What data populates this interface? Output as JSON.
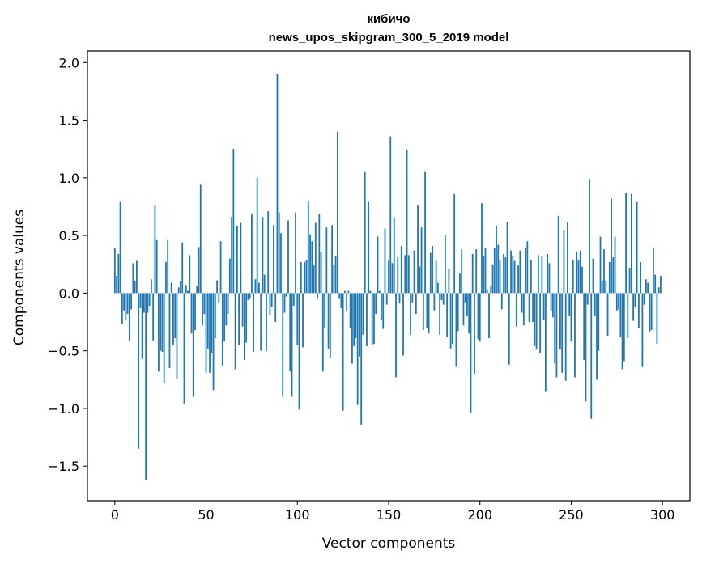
{
  "chart_data": {
    "type": "bar",
    "title": "кибичо",
    "subtitle": "news_upos_skipgram_300_5_2019 model",
    "xlabel": "Vector components",
    "ylabel": "Components values",
    "xlim": [
      -15,
      315
    ],
    "ylim": [
      -1.8,
      2.1
    ],
    "xticks": [
      0,
      50,
      100,
      150,
      200,
      250,
      300
    ],
    "yticks": [
      -1.5,
      -1.0,
      -0.5,
      0.0,
      0.5,
      1.0,
      1.5,
      2.0
    ],
    "ytick_labels": [
      "−1.5",
      "−1.0",
      "−0.5",
      "0.0",
      "0.5",
      "1.0",
      "1.5",
      "2.0"
    ],
    "bar_color": "#1f77b4",
    "grid": false,
    "values": [
      0.39,
      0.15,
      0.34,
      0.79,
      -0.27,
      -0.15,
      -0.23,
      -0.18,
      -0.41,
      -0.14,
      0.26,
      0.1,
      0.28,
      -1.35,
      -0.13,
      -0.57,
      -0.17,
      -1.62,
      -0.17,
      -0.11,
      0.12,
      -0.41,
      0.76,
      0.46,
      -0.68,
      -0.5,
      -0.51,
      -0.78,
      0.27,
      0.46,
      -0.65,
      0.09,
      -0.45,
      -0.39,
      -0.74,
      0.05,
      0.1,
      0.44,
      -0.96,
      0.07,
      0.02,
      0.33,
      -0.35,
      -0.9,
      -0.32,
      0.06,
      0.4,
      0.94,
      -0.28,
      -0.18,
      -0.69,
      -0.48,
      -0.69,
      -0.52,
      -0.84,
      -0.39,
      0.11,
      -0.09,
      0.45,
      -0.63,
      -0.42,
      -0.28,
      -0.18,
      0.3,
      0.66,
      1.25,
      -0.66,
      0.58,
      -0.45,
      0.61,
      -0.29,
      -0.58,
      -0.43,
      -0.06,
      -0.05,
      0.69,
      -0.51,
      0.12,
      1.0,
      0.09,
      -0.5,
      0.66,
      0.16,
      -0.5,
      0.71,
      -0.19,
      -0.12,
      0.59,
      -0.25,
      1.9,
      0.7,
      0.52,
      -0.9,
      -0.17,
      -0.03,
      0.63,
      -0.68,
      -0.9,
      -0.11,
      0.7,
      -0.45,
      -1.01,
      0.27,
      -0.47,
      0.27,
      0.29,
      0.8,
      0.51,
      0.45,
      0.24,
      0.61,
      -0.05,
      0.69,
      0.36,
      -0.68,
      -0.3,
      0.57,
      -0.48,
      -0.56,
      0.59,
      0.25,
      0.32,
      1.4,
      -0.05,
      -0.13,
      -1.02,
      0.02,
      -0.16,
      0.02,
      -0.3,
      -0.61,
      -0.46,
      -0.39,
      -0.97,
      -0.55,
      -1.14,
      -0.36,
      1.05,
      -0.46,
      0.79,
      0.02,
      -0.45,
      -0.44,
      -0.18,
      0.49,
      0.02,
      -0.23,
      -0.31,
      0.56,
      -0.1,
      0.28,
      1.36,
      0.26,
      0.65,
      -0.73,
      0.31,
      -0.09,
      0.41,
      -0.54,
      0.33,
      1.24,
      0.33,
      -0.36,
      -0.08,
      0.37,
      -0.18,
      0.76,
      0.23,
      0.57,
      -0.32,
      1.05,
      -0.3,
      -0.35,
      0.35,
      0.41,
      -0.15,
      0.28,
      0.09,
      -0.36,
      -0.06,
      -0.1,
      0.5,
      -0.38,
      0.21,
      -0.48,
      -0.44,
      0.86,
      -0.64,
      -0.33,
      0.17,
      0.38,
      -0.28,
      -0.08,
      -0.2,
      -0.35,
      -1.04,
      0.34,
      -0.7,
      0.38,
      -0.4,
      -0.42,
      0.78,
      0.32,
      0.39,
      0.03,
      -0.39,
      0.06,
      0.25,
      0.39,
      0.58,
      0.42,
      0.28,
      -0.14,
      0.34,
      0.31,
      0.62,
      -0.62,
      0.37,
      0.32,
      0.28,
      -0.29,
      0.24,
      0.37,
      -0.17,
      -0.28,
      0.39,
      0.45,
      -0.25,
      0.29,
      -0.25,
      -0.46,
      -0.49,
      0.33,
      -0.52,
      0.32,
      -0.23,
      -0.85,
      0.34,
      0.26,
      -0.15,
      -0.21,
      -0.61,
      -0.73,
      0.67,
      -0.49,
      -0.69,
      0.55,
      -0.76,
      0.62,
      -0.2,
      -0.42,
      0.29,
      -0.73,
      0.36,
      0.29,
      0.37,
      0.23,
      -0.58,
      -0.94,
      -0.1,
      0.99,
      -1.09,
      0.3,
      -0.2,
      -0.75,
      -0.5,
      0.49,
      0.11,
      0.38,
      0.1,
      -0.37,
      0.27,
      0.82,
      0.31,
      0.49,
      -0.15,
      -0.14,
      -0.38,
      -0.66,
      -0.59,
      0.87,
      -0.39,
      0.22,
      0.86,
      -0.24,
      -0.12,
      0.79,
      -0.3,
      0.27,
      -0.64,
      -0.1,
      0.12,
      0.09,
      -0.34,
      -0.32,
      0.39,
      0.16,
      -0.44,
      0.05,
      0.15
    ]
  }
}
